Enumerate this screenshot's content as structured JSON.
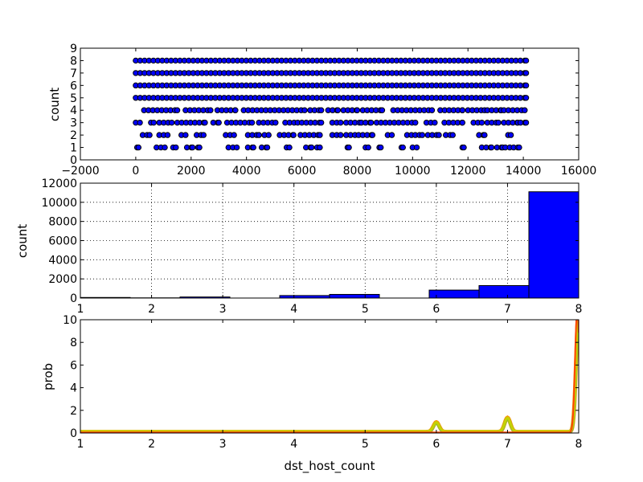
{
  "chart_data": [
    {
      "type": "scatter",
      "xlabel": "",
      "ylabel": "count",
      "xlim": [
        -2000,
        16000
      ],
      "ylim": [
        0,
        9
      ],
      "xticks": [
        "−2000",
        "0",
        "2000",
        "4000",
        "6000",
        "8000",
        "10000",
        "12000",
        "14000",
        "16000"
      ],
      "yticks": [
        "0",
        "1",
        "2",
        "3",
        "4",
        "5",
        "6",
        "7",
        "8",
        "9"
      ],
      "grid": false,
      "marker_color": "#0000ff",
      "series": [
        {
          "levels": [
            {
              "y": 8,
              "segments": [
                [
                  0,
                  14100
                ]
              ]
            },
            {
              "y": 7,
              "segments": [
                [
                  0,
                  14100
                ]
              ]
            },
            {
              "y": 6,
              "segments": [
                [
                  0,
                  14100
                ]
              ]
            },
            {
              "y": 5,
              "segments": [
                [
                  0,
                  14100
                ]
              ]
            },
            {
              "y": 4,
              "segments": [
                [
                  300,
                  1500
                ],
                [
                  1800,
                  2700
                ],
                [
                  2950,
                  3600
                ],
                [
                  3900,
                  6100
                ],
                [
                  6300,
                  6700
                ],
                [
                  6950,
                  7300
                ],
                [
                  7500,
                  8000
                ],
                [
                  8200,
                  8900
                ],
                [
                  9300,
                  10700
                ],
                [
                  11000,
                  11800
                ],
                [
                  12000,
                  12600
                ],
                [
                  12700,
                  13200
                ],
                [
                  13300,
                  14050
                ]
              ]
            },
            {
              "y": 3,
              "segments": [
                [
                  0,
                  150
                ],
                [
                  550,
                  650
                ],
                [
                  850,
                  1300
                ],
                [
                  1500,
                  2500
                ],
                [
                  2800,
                  3000
                ],
                [
                  3300,
                  4200
                ],
                [
                  4450,
                  5050
                ],
                [
                  5400,
                  5850
                ],
                [
                  6000,
                  6700
                ],
                [
                  7100,
                  7400
                ],
                [
                  7600,
                  8150
                ],
                [
                  8300,
                  8500
                ],
                [
                  8700,
                  10100
                ],
                [
                  10500,
                  10800
                ],
                [
                  11150,
                  11800
                ],
                [
                  12200,
                  12500
                ],
                [
                  12700,
                  13100
                ],
                [
                  13300,
                  13800
                ],
                [
                  13900,
                  14100
                ]
              ]
            },
            {
              "y": 2,
              "segments": [
                [
                  250,
                  500
                ],
                [
                  850,
                  1150
                ],
                [
                  1650,
                  1800
                ],
                [
                  2200,
                  2450
                ],
                [
                  3250,
                  3550
                ],
                [
                  4050,
                  4450
                ],
                [
                  4650,
                  4800
                ],
                [
                  5200,
                  5700
                ],
                [
                  5950,
                  6650
                ],
                [
                  7100,
                  7400
                ],
                [
                  7600,
                  8050
                ],
                [
                  8200,
                  8550
                ],
                [
                  9100,
                  9250
                ],
                [
                  9800,
                  10100
                ],
                [
                  10250,
                  10350
                ],
                [
                  10550,
                  10950
                ],
                [
                  11200,
                  11450
                ],
                [
                  12400,
                  12600
                ],
                [
                  13450,
                  13550
                ]
              ]
            },
            {
              "y": 1,
              "segments": [
                [
                  50,
                  100
                ],
                [
                  750,
                  1050
                ],
                [
                  1350,
                  1450
                ],
                [
                  1850,
                  2050
                ],
                [
                  2250,
                  2300
                ],
                [
                  3350,
                  3650
                ],
                [
                  4050,
                  4250
                ],
                [
                  4550,
                  4750
                ],
                [
                  5450,
                  5550
                ],
                [
                  6150,
                  6350
                ],
                [
                  6550,
                  6650
                ],
                [
                  7650,
                  7700
                ],
                [
                  8300,
                  8400
                ],
                [
                  8800,
                  8850
                ],
                [
                  9600,
                  9650
                ],
                [
                  10000,
                  10150
                ],
                [
                  11800,
                  11850
                ],
                [
                  12500,
                  12850
                ],
                [
                  13050,
                  13250
                ],
                [
                  13350,
                  13650
                ],
                [
                  13800,
                  13850
                ]
              ]
            }
          ]
        }
      ]
    },
    {
      "type": "bar",
      "xlabel": "",
      "ylabel": "count",
      "xlim": [
        1,
        8
      ],
      "ylim": [
        0,
        12000
      ],
      "xticks": [
        "1",
        "2",
        "3",
        "4",
        "5",
        "6",
        "7",
        "8"
      ],
      "yticks": [
        "0",
        "2000",
        "4000",
        "6000",
        "8000",
        "10000",
        "12000"
      ],
      "grid": true,
      "bar_color": "#0000ff",
      "bins": [
        {
          "x0": 1.0,
          "x1": 1.7,
          "value": 60
        },
        {
          "x0": 1.7,
          "x1": 2.4,
          "value": 20
        },
        {
          "x0": 2.4,
          "x1": 3.1,
          "value": 110
        },
        {
          "x0": 3.1,
          "x1": 3.8,
          "value": 0
        },
        {
          "x0": 3.8,
          "x1": 4.5,
          "value": 260
        },
        {
          "x0": 4.5,
          "x1": 5.2,
          "value": 380
        },
        {
          "x0": 5.2,
          "x1": 5.9,
          "value": 0
        },
        {
          "x0": 5.9,
          "x1": 6.6,
          "value": 830
        },
        {
          "x0": 6.6,
          "x1": 7.3,
          "value": 1300
        },
        {
          "x0": 7.3,
          "x1": 8.0,
          "value": 11100
        }
      ]
    },
    {
      "type": "line",
      "xlabel": "dst_host_count",
      "ylabel": "prob",
      "xlim": [
        1,
        8
      ],
      "ylim": [
        0,
        10
      ],
      "xticks": [
        "1",
        "2",
        "3",
        "4",
        "5",
        "6",
        "7",
        "8"
      ],
      "yticks": [
        "0",
        "2",
        "4",
        "6",
        "8",
        "10"
      ],
      "grid": false,
      "series": [
        {
          "color": "#ff8c00",
          "baseline": 0.1,
          "peaks": [
            {
              "x": 6.0,
              "height": 0.85,
              "width": 0.04
            },
            {
              "x": 7.0,
              "height": 1.25,
              "width": 0.04
            },
            {
              "x": 8.0,
              "height": 11.0,
              "width": 0.035
            }
          ]
        },
        {
          "color": "#80c040",
          "baseline": 0.1,
          "peaks": [
            {
              "x": 6.0,
              "height": 0.8,
              "width": 0.04
            },
            {
              "x": 7.0,
              "height": 1.2,
              "width": 0.04
            },
            {
              "x": 8.0,
              "height": 11.0,
              "width": 0.035
            }
          ]
        },
        {
          "color": "#c8d000",
          "baseline": 0.15,
          "peaks": [
            {
              "x": 6.0,
              "height": 0.8,
              "width": 0.04
            },
            {
              "x": 7.0,
              "height": 1.2,
              "width": 0.04
            },
            {
              "x": 8.0,
              "height": 11.0,
              "width": 0.035
            }
          ]
        },
        {
          "color": "#ff4500",
          "baseline": 0.05,
          "peaks": [
            {
              "x": 7.98,
              "height": 11.0,
              "width": 0.03
            }
          ]
        }
      ]
    }
  ]
}
